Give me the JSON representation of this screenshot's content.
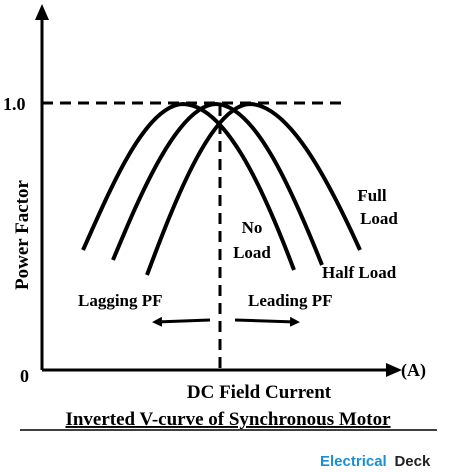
{
  "diagram": {
    "y_axis_label": "Power Factor",
    "y_tick_top": "1.0",
    "origin_label": "0",
    "x_axis_label": "DC Field Current",
    "x_axis_unit": "(A)",
    "caption": "Inverted V-curve of Synchronous Motor",
    "curves": [
      {
        "name": "No Load",
        "line1": "No",
        "line2": "Load"
      },
      {
        "name": "Half Load"
      },
      {
        "name": "Full Load",
        "line1": "Full",
        "line2": "Load"
      }
    ],
    "regions": {
      "lagging": "Lagging PF",
      "leading": "Leading PF"
    },
    "brand": {
      "part1": "Electrical",
      "part2": "Deck"
    },
    "colors": {
      "ink": "#000000",
      "brand_blue": "#1a8fd6",
      "brand_dark": "#222222"
    }
  }
}
